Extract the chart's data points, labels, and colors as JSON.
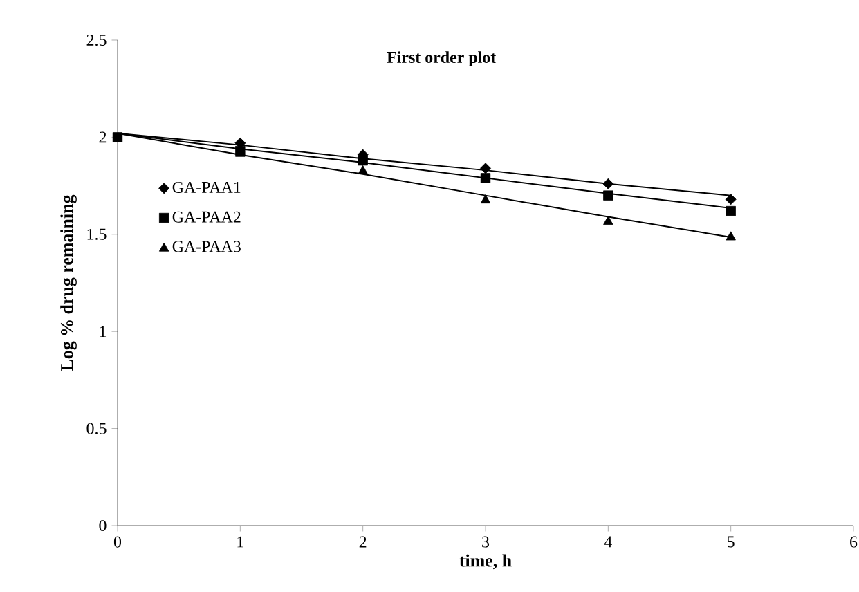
{
  "chart_data": {
    "type": "scatter",
    "title": "First order plot",
    "xlabel": "time, h",
    "ylabel": "Log % drug remaining",
    "x": [
      0,
      1,
      2,
      3,
      4,
      5
    ],
    "xlim": [
      0,
      6
    ],
    "xticks": [
      0,
      1,
      2,
      3,
      4,
      5,
      6
    ],
    "ylim": [
      0,
      2.5
    ],
    "yticks": [
      0,
      0.5,
      1,
      1.5,
      2,
      2.5
    ],
    "grid": false,
    "legend": "left",
    "series": [
      {
        "type": "line",
        "color": "#000000",
        "marker": "none",
        "line_style": "solid",
        "values": [
          2.02,
          1.96,
          1.89,
          1.83,
          1.76,
          1.7
        ]
      },
      {
        "type": "line",
        "color": "#000000",
        "marker": "none",
        "line_style": "solid",
        "values": [
          2.02,
          1.94,
          1.87,
          1.79,
          1.71,
          1.635
        ]
      },
      {
        "type": "line",
        "color": "#000000",
        "marker": "none",
        "line_style": "solid",
        "values": [
          2.02,
          1.91,
          1.81,
          1.7,
          1.59,
          1.485
        ]
      },
      {
        "name": "GA-PAA1",
        "color": "#000000",
        "marker": "diamond",
        "values": [
          null,
          1.97,
          1.91,
          1.84,
          1.76,
          1.68
        ]
      },
      {
        "name": "GA-PAA2",
        "color": "#000000",
        "marker": "square",
        "values": [
          2.0,
          1.93,
          1.88,
          1.79,
          1.7,
          1.62
        ]
      },
      {
        "name": "GA-PAA3",
        "color": "#000000",
        "marker": "triangle",
        "values": [
          null,
          1.92,
          1.83,
          1.68,
          1.57,
          1.49
        ]
      }
    ]
  }
}
